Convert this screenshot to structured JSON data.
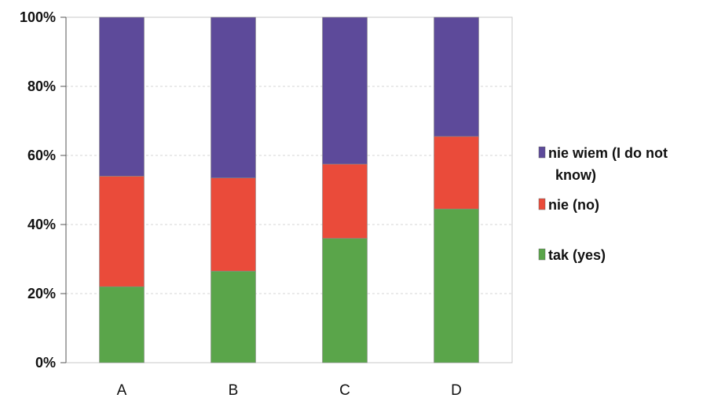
{
  "chart_data": {
    "type": "bar",
    "stacked": true,
    "percent": true,
    "categories": [
      "A",
      "B",
      "C",
      "D"
    ],
    "series": [
      {
        "name": "tak (yes)",
        "color": "#5aa54a",
        "values": [
          22,
          26.5,
          36,
          44.5
        ]
      },
      {
        "name": "nie (no)",
        "color": "#ea4b3a",
        "values": [
          32,
          27,
          21.5,
          21
        ]
      },
      {
        "name": "nie wiem (I do not know)",
        "color": "#5d4a9a",
        "values": [
          46,
          46.5,
          42.5,
          34.5
        ]
      }
    ],
    "legend_order": [
      2,
      1,
      0
    ],
    "legend_lines": [
      [
        "nie wiem (I do not",
        "know)"
      ],
      [
        "nie (no)"
      ],
      [
        "tak (yes)"
      ]
    ],
    "yticks": [
      "0%",
      "20%",
      "40%",
      "60%",
      "80%",
      "100%"
    ],
    "ylim": [
      0,
      100
    ],
    "grid": true,
    "legend_position": "right",
    "title": "",
    "xlabel": "",
    "ylabel": ""
  }
}
